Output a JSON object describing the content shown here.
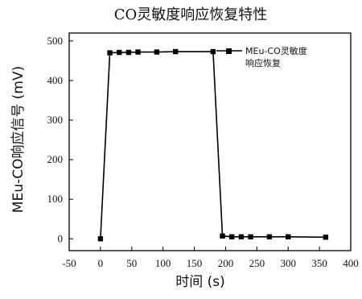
{
  "chart_data": {
    "type": "line",
    "title": "CO灵敏度响应恢复特性",
    "xlabel": "时间 (s)",
    "ylabel": "MEu-CO响应信号 (mV)",
    "xlim": [
      -50,
      400
    ],
    "ylim": [
      -30,
      520
    ],
    "xticks": [
      -50,
      0,
      50,
      100,
      150,
      200,
      250,
      300,
      350,
      400
    ],
    "yticks": [
      0,
      100,
      200,
      300,
      400,
      500
    ],
    "x_tick_labels": [
      "-50",
      "0",
      "50",
      "100",
      "150",
      "200",
      "250",
      "300",
      "350",
      "400"
    ],
    "y_tick_labels": [
      "0",
      "100",
      "200",
      "300",
      "400",
      "500"
    ],
    "legend_position": "top-right",
    "grid": false,
    "series": [
      {
        "name": "MEu-CO灵敏度响应恢复",
        "color": "#000000",
        "marker": "square",
        "x": [
          0,
          15,
          30,
          45,
          60,
          90,
          120,
          180,
          195,
          210,
          225,
          240,
          270,
          300,
          360
        ],
        "y": [
          0,
          470,
          471,
          471,
          472,
          472,
          473,
          473,
          7,
          5,
          5,
          5,
          5,
          5,
          4
        ]
      }
    ]
  }
}
